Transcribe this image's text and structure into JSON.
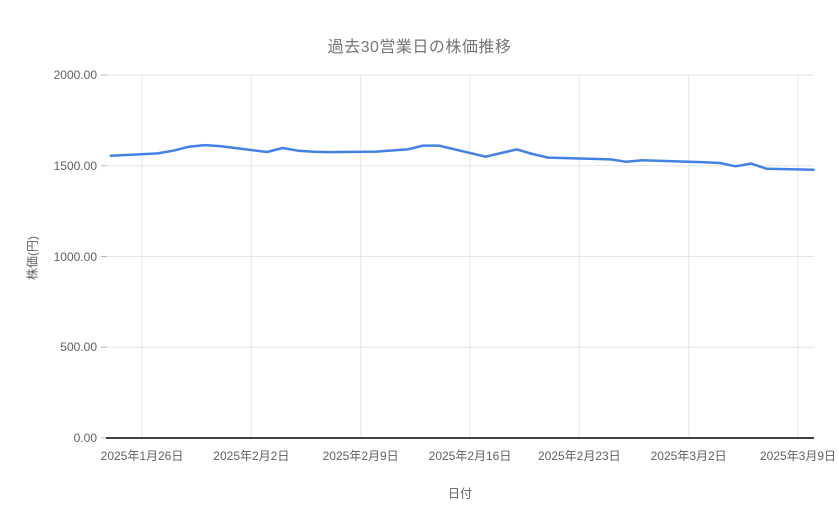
{
  "chart": {
    "title": "過去30営業日の株価推移",
    "x_axis_title": "日付",
    "y_axis_title": "株価(円)",
    "colors": {
      "line": "#4580e4",
      "title_text": "#757575",
      "tick_text": "#616161",
      "gridline": "#e6e6e6",
      "axis_line": "#424242",
      "tick_mark": "#b7b7b7",
      "background": "#ffffff"
    }
  },
  "chart_data": {
    "type": "line",
    "title": "過去30営業日の株価推移",
    "xlabel": "日付",
    "ylabel": "株価(円)",
    "ylim": [
      0,
      2000
    ],
    "grid": true,
    "legend": "none",
    "x_tick_labels": [
      {
        "date": "2025-01-26",
        "label": "2025年1月26日"
      },
      {
        "date": "2025-02-02",
        "label": "2025年2月2日"
      },
      {
        "date": "2025-02-09",
        "label": "2025年2月9日"
      },
      {
        "date": "2025-02-16",
        "label": "2025年2月16日"
      },
      {
        "date": "2025-02-23",
        "label": "2025年2月23日"
      },
      {
        "date": "2025-03-02",
        "label": "2025年3月2日"
      },
      {
        "date": "2025-03-09",
        "label": "2025年3月9日"
      }
    ],
    "y_ticks": [
      {
        "value": 0,
        "label": "0.00"
      },
      {
        "value": 500,
        "label": "500.00"
      },
      {
        "value": 1000,
        "label": "1000.00"
      },
      {
        "value": 1500,
        "label": "1500.00"
      },
      {
        "value": 2000,
        "label": "2000.00"
      }
    ],
    "dates": [
      "2025-01-24",
      "2025-01-27",
      "2025-01-28",
      "2025-01-29",
      "2025-01-30",
      "2025-01-31",
      "2025-02-03",
      "2025-02-04",
      "2025-02-05",
      "2025-02-06",
      "2025-02-07",
      "2025-02-10",
      "2025-02-12",
      "2025-02-13",
      "2025-02-14",
      "2025-02-17",
      "2025-02-18",
      "2025-02-19",
      "2025-02-20",
      "2025-02-21",
      "2025-02-25",
      "2025-02-26",
      "2025-02-27",
      "2025-02-28",
      "2025-03-03",
      "2025-03-04",
      "2025-03-05",
      "2025-03-06",
      "2025-03-07",
      "2025-03-10"
    ],
    "values": [
      1555,
      1568,
      1583,
      1605,
      1614,
      1608,
      1576,
      1598,
      1583,
      1577,
      1575,
      1578,
      1590,
      1611,
      1611,
      1550,
      1570,
      1590,
      1565,
      1545,
      1535,
      1522,
      1530,
      1528,
      1519,
      1515,
      1497,
      1512,
      1483,
      1478
    ]
  }
}
